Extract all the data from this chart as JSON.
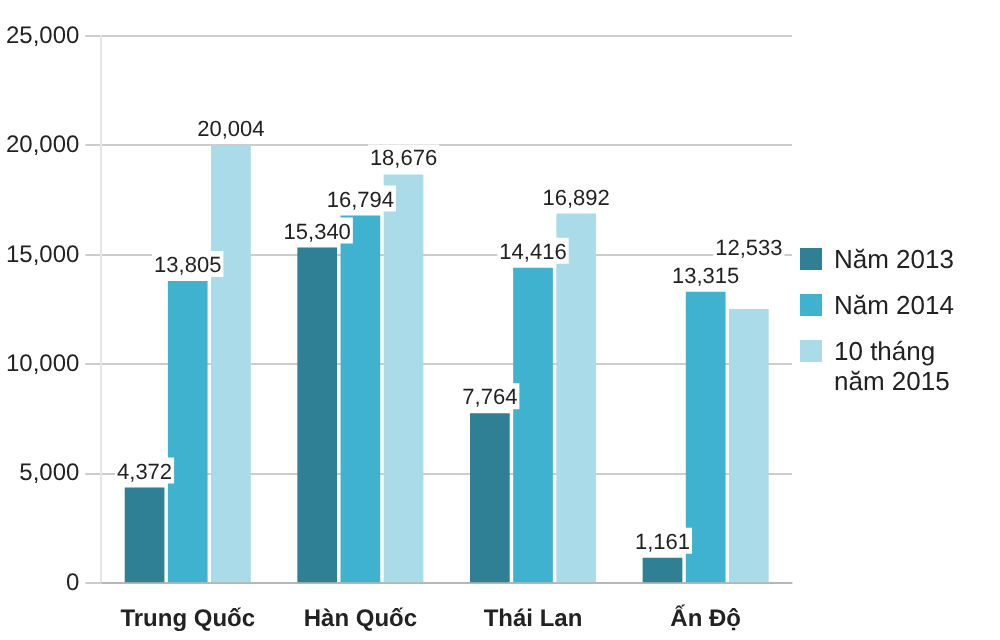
{
  "chart_data": {
    "type": "bar",
    "categories": [
      "Trung Quốc",
      "Hàn Quốc",
      "Thái Lan",
      "Ấn Độ"
    ],
    "series": [
      {
        "name": "Năm 2013",
        "color": "#2f7f95",
        "values": [
          4372,
          15340,
          7764,
          1161
        ],
        "value_labels": [
          "4,372",
          "15,340",
          "7,764",
          "1,161"
        ]
      },
      {
        "name": "Năm 2014",
        "color": "#3fb2cf",
        "values": [
          13805,
          16794,
          14416,
          13315
        ],
        "value_labels": [
          "13,805",
          "16,794",
          "14,416",
          "13,315"
        ]
      },
      {
        "name": "10 tháng năm 2015",
        "color": "#a9dbe8",
        "values": [
          20004,
          18676,
          16892,
          12533
        ],
        "value_labels": [
          "20,004",
          "18,676",
          "16,892",
          "12,533"
        ]
      }
    ],
    "ylim": [
      0,
      25000
    ],
    "yticks": [
      {
        "value": 0,
        "label": "0"
      },
      {
        "value": 5000,
        "label": "5,000"
      },
      {
        "value": 10000,
        "label": "10,000"
      },
      {
        "value": 15000,
        "label": "15,000"
      },
      {
        "value": 20000,
        "label": "20,000"
      },
      {
        "value": 25000,
        "label": "25,000"
      }
    ],
    "grid": "y",
    "legend": "right",
    "data_labels": true
  }
}
